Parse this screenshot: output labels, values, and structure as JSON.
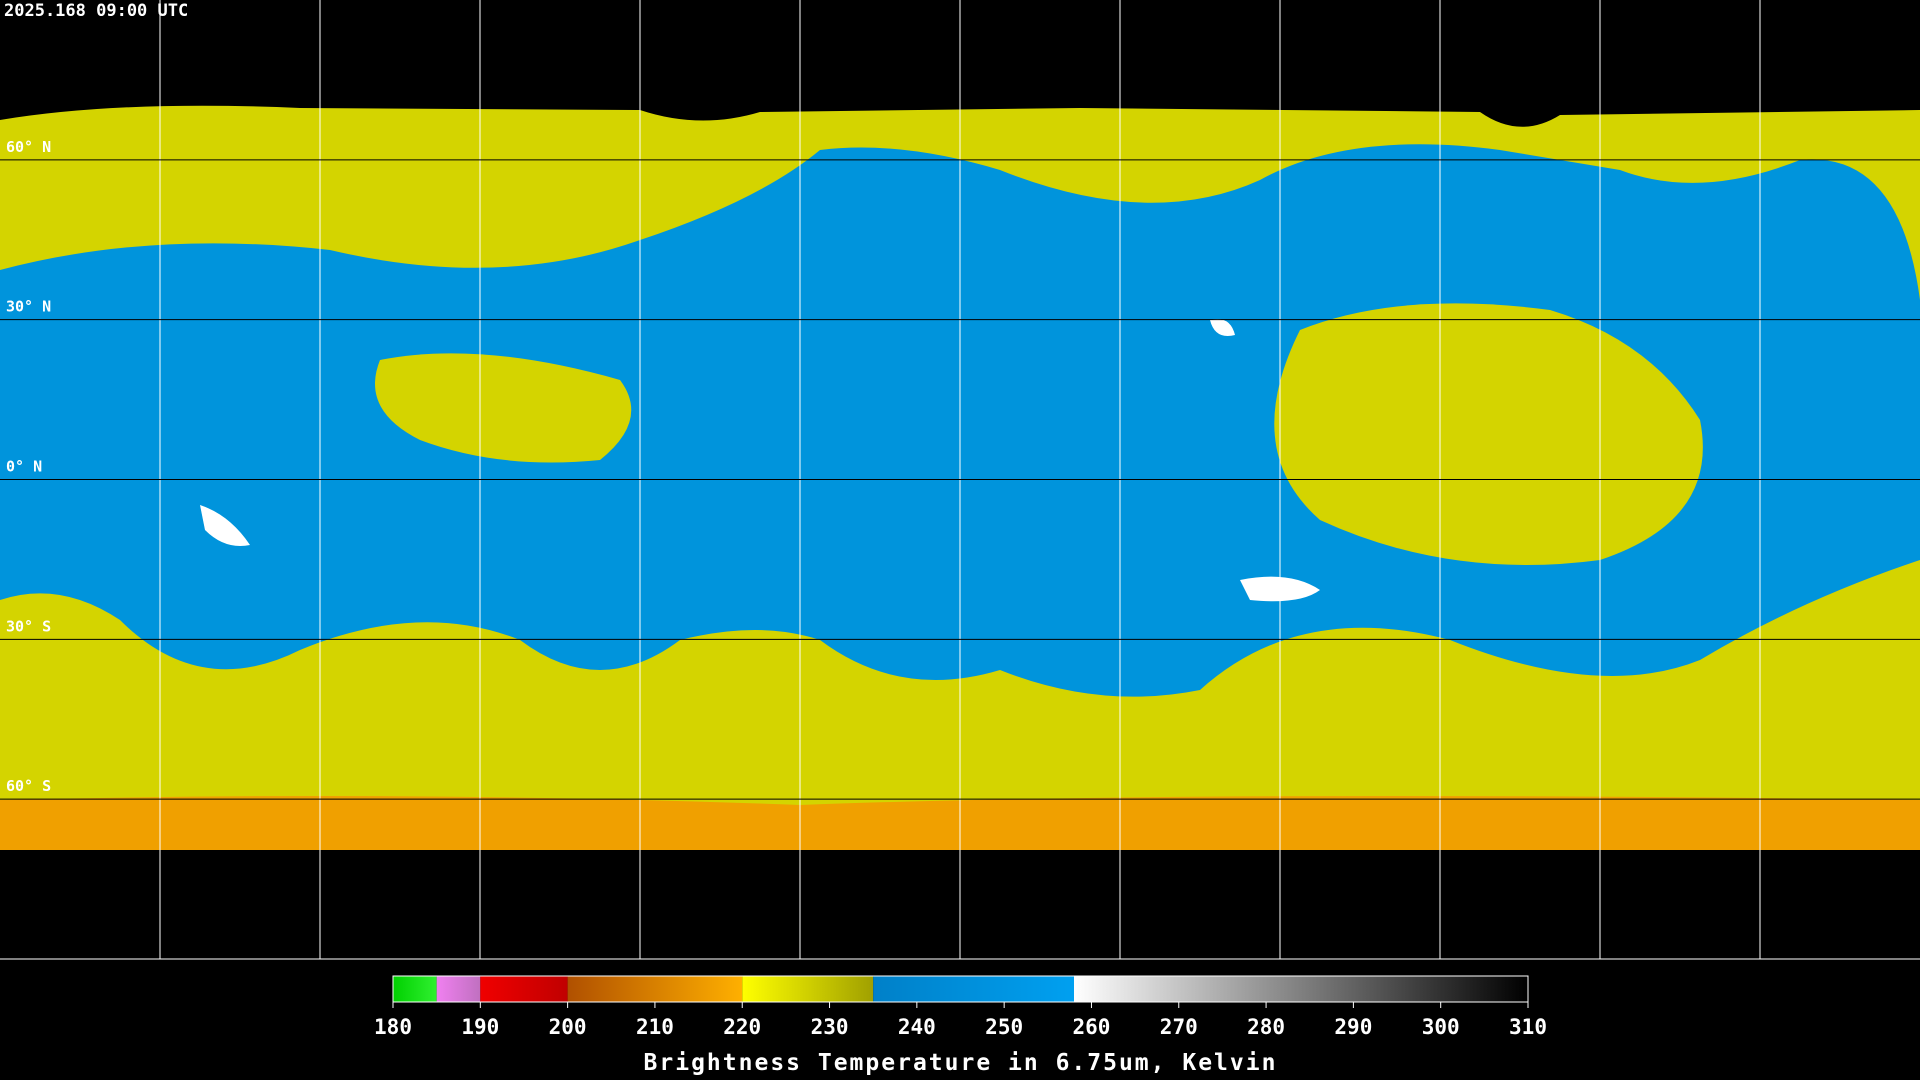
{
  "header": {
    "timestamp": "2025.168 09:00 UTC"
  },
  "map": {
    "lat_lines": [
      {
        "value": 60,
        "label": "60° N"
      },
      {
        "value": 30,
        "label": "30° N"
      },
      {
        "value": 0,
        "label": "0° N"
      },
      {
        "value": -30,
        "label": "30° S"
      },
      {
        "value": -60,
        "label": "60° S"
      }
    ],
    "lat_range": [
      90,
      -90
    ]
  },
  "colorbar": {
    "title": "Brightness Temperature in 6.75um, Kelvin",
    "lim": [
      180,
      310
    ],
    "ticks": [
      180,
      190,
      200,
      210,
      220,
      230,
      240,
      250,
      260,
      270,
      280,
      290,
      300,
      310
    ],
    "segments": [
      {
        "from": 180,
        "to": 185,
        "colors": [
          "#00d000",
          "#30f030"
        ]
      },
      {
        "from": 185,
        "to": 190,
        "colors": [
          "#f080f0",
          "#c070c0"
        ]
      },
      {
        "from": 190,
        "to": 200,
        "colors": [
          "#f00000",
          "#c00000"
        ]
      },
      {
        "from": 200,
        "to": 220,
        "colors": [
          "#b05000",
          "#ffb000"
        ]
      },
      {
        "from": 220,
        "to": 235,
        "colors": [
          "#ffff00",
          "#a0a000"
        ]
      },
      {
        "from": 235,
        "to": 258,
        "colors": [
          "#0080c8",
          "#00a0f0"
        ]
      },
      {
        "from": 258,
        "to": 310,
        "colors": [
          "#ffffff",
          "#000000"
        ]
      }
    ]
  }
}
